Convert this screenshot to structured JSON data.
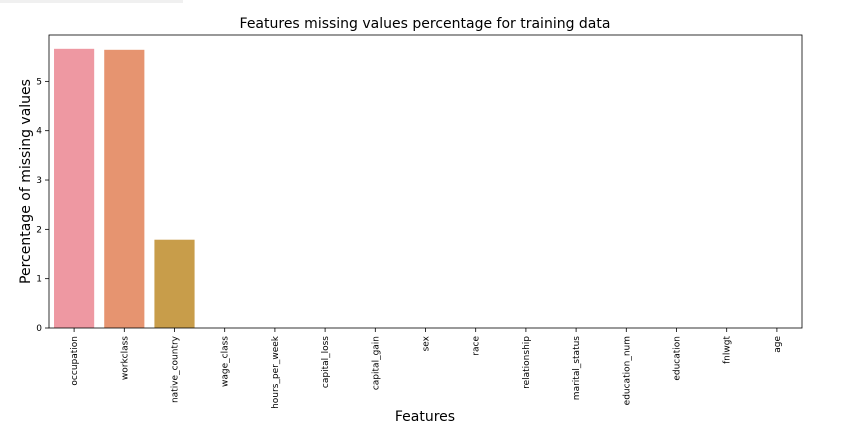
{
  "chart_data": {
    "type": "bar",
    "title": "Features missing values percentage for training data",
    "xlabel": "Features",
    "ylabel": "Percentage of missing values",
    "categories": [
      "occupation",
      "workclass",
      "native_country",
      "wage_class",
      "hours_per_week",
      "capital_loss",
      "capital_gain",
      "sex",
      "race",
      "relationship",
      "marital_status",
      "education_num",
      "education",
      "fnlwgt",
      "age"
    ],
    "values": [
      5.66,
      5.64,
      1.79,
      0,
      0,
      0,
      0,
      0,
      0,
      0,
      0,
      0,
      0,
      0,
      0
    ],
    "colors": [
      "#ee98a2",
      "#e69470",
      "#c89d4a",
      "#b3a64a",
      "#9caf4f",
      "#7db75a",
      "#55bd78",
      "#4ec1a1",
      "#4fc1bb",
      "#52bfd0",
      "#5fb8e4",
      "#8ab0ec",
      "#b3a2ee",
      "#d896ea",
      "#ed93c7"
    ],
    "yticks": [
      0,
      1,
      2,
      3,
      4,
      5
    ],
    "ylim": [
      0,
      5.94
    ],
    "grid": false,
    "legend": "none"
  }
}
